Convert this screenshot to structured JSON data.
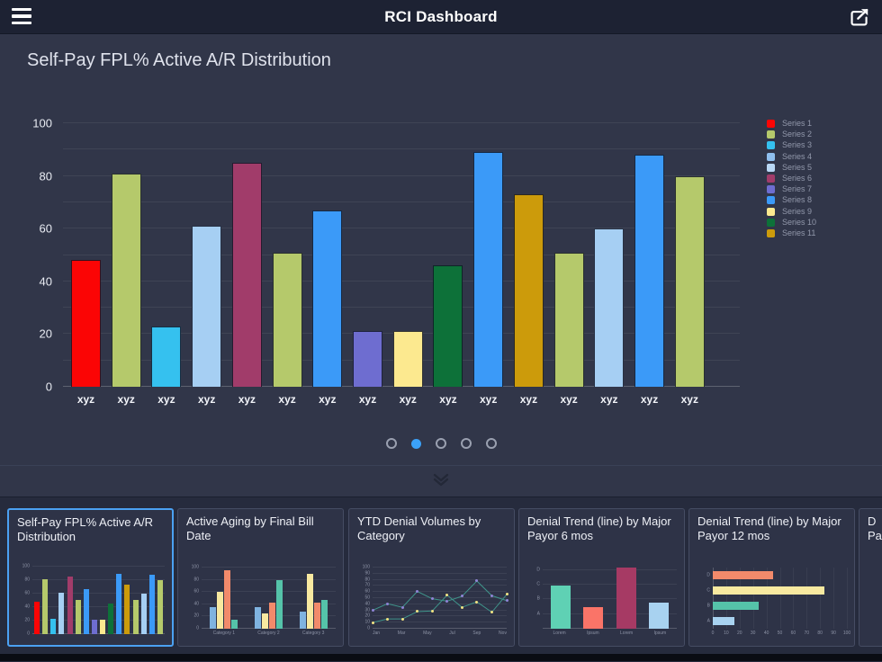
{
  "topbar": {
    "title": "RCI Dashboard"
  },
  "main": {
    "title": "Self-Pay FPL% Active A/R Distribution",
    "chart": {
      "type": "bar",
      "categories": [
        "xyz",
        "xyz",
        "xyz",
        "xyz",
        "xyz",
        "xyz",
        "xyz",
        "xyz",
        "xyz",
        "xyz",
        "xyz",
        "xyz",
        "xyz",
        "xyz",
        "xyz",
        "xyz"
      ],
      "values": [
        48,
        81,
        23,
        61,
        85,
        51,
        67,
        21,
        21,
        46,
        89,
        73,
        51,
        60,
        88,
        80
      ],
      "colors": [
        "#fb0505",
        "#b5c96b",
        "#35c1ef",
        "#a6cff3",
        "#a13c6a",
        "#b5c96b",
        "#3b9af8",
        "#6e6dd0",
        "#fce98f",
        "#0d7139",
        "#3b9af8",
        "#cc9b0b",
        "#b5c96b",
        "#a6cff3",
        "#3b9af8",
        "#b5c96b"
      ],
      "ylim": [
        0,
        100
      ],
      "y_ticks": [
        100,
        80,
        60,
        40,
        20,
        0
      ],
      "grid_step": 10,
      "legend_position": "right",
      "legend": [
        {
          "label": "Series 1",
          "color": "#fb0505"
        },
        {
          "label": "Series 2",
          "color": "#b5c96b"
        },
        {
          "label": "Series 3",
          "color": "#35c1ef"
        },
        {
          "label": "Series 4",
          "color": "#8fbfee"
        },
        {
          "label": "Series 5",
          "color": "#b9d8f5"
        },
        {
          "label": "Series 6",
          "color": "#a13c6a"
        },
        {
          "label": "Series 7",
          "color": "#6e6dd0"
        },
        {
          "label": "Series 8",
          "color": "#3b9af8"
        },
        {
          "label": "Series 9",
          "color": "#fce98f"
        },
        {
          "label": "Series 10",
          "color": "#0d7139"
        },
        {
          "label": "Series 11",
          "color": "#cc9b0b"
        }
      ]
    }
  },
  "pagination": {
    "total": 5,
    "active_index": 1
  },
  "thumbnails": [
    {
      "title": "Self-Pay FPL% Active A/R Distribution",
      "selected": true,
      "chart": {
        "type": "bar",
        "y_ticks": [
          100,
          80,
          60,
          40,
          20,
          0
        ],
        "values": [
          48,
          81,
          23,
          61,
          85,
          51,
          67,
          21,
          21,
          46,
          89,
          73,
          51,
          60,
          88,
          80
        ],
        "colors": [
          "#fb0505",
          "#b5c96b",
          "#35c1ef",
          "#a6cff3",
          "#a13c6a",
          "#b5c96b",
          "#3b9af8",
          "#6e6dd0",
          "#fce98f",
          "#0d7139",
          "#3b9af8",
          "#cc9b0b",
          "#b5c96b",
          "#a6cff3",
          "#3b9af8",
          "#b5c96b"
        ]
      }
    },
    {
      "title": "Active Aging by Final Bill Date",
      "selected": false,
      "chart": {
        "type": "grouped-bar",
        "categories": [
          "Category 1",
          "Category 2",
          "Category 3"
        ],
        "y_ticks": [
          100,
          80,
          60,
          40,
          20,
          0
        ],
        "series": [
          {
            "color": "#7fb3e0",
            "values": [
              35,
              35,
              28
            ]
          },
          {
            "color": "#f8e9a0",
            "values": [
              60,
              25,
              90
            ]
          },
          {
            "color": "#f28a6b",
            "values": [
              95,
              42,
              42
            ]
          },
          {
            "color": "#55c3a9",
            "values": [
              15,
              80,
              47
            ]
          }
        ]
      }
    },
    {
      "title": "YTD Denial Volumes by Category",
      "selected": false,
      "chart": {
        "type": "line",
        "x_ticks": [
          "Jan",
          "Mar",
          "May",
          "Jul",
          "Sep",
          "Nov"
        ],
        "y_ticks": [
          100,
          90,
          80,
          70,
          60,
          50,
          40,
          30,
          20,
          10,
          0
        ],
        "series": [
          {
            "line_color": "#3f948a",
            "marker_color": "#8f84d6",
            "values": [
              30,
              41,
              35,
              61,
              49,
              45,
              53,
              78,
              54,
              46
            ]
          },
          {
            "line_color": "#3f948a",
            "marker_color": "#f2e383",
            "values": [
              10,
              16,
              16,
              28,
              29,
              55,
              35,
              44,
              27,
              56
            ]
          }
        ]
      }
    },
    {
      "title": "Denial Trend (line) by Major Payor 6 mos",
      "selected": false,
      "chart": {
        "type": "category-bar",
        "categories": [
          "Lorem",
          "Ipsum",
          "Lorem",
          "Ipsum"
        ],
        "values": [
          70,
          36,
          100,
          42
        ],
        "colors": [
          "#5fd1b4",
          "#fa7468",
          "#a63a64",
          "#a8d2f0"
        ],
        "y_tick_labels": [
          "D",
          "C",
          "B",
          "A"
        ],
        "y_tick_positions": [
          96,
          72,
          48,
          24
        ]
      }
    },
    {
      "title": "Denial Trend (line) by Major Payor 12 mos",
      "selected": false,
      "chart": {
        "type": "hbar",
        "categories": [
          "D",
          "C",
          "B",
          "A"
        ],
        "values": [
          45,
          83,
          34,
          16
        ],
        "colors": [
          "#f28a6b",
          "#f8e9a0",
          "#55c3a9",
          "#a8d2f0"
        ],
        "x_ticks": [
          0,
          10,
          20,
          30,
          40,
          50,
          60,
          70,
          80,
          90,
          100
        ]
      }
    },
    {
      "title_lines": [
        "D",
        "Pa"
      ],
      "selected": false
    }
  ]
}
